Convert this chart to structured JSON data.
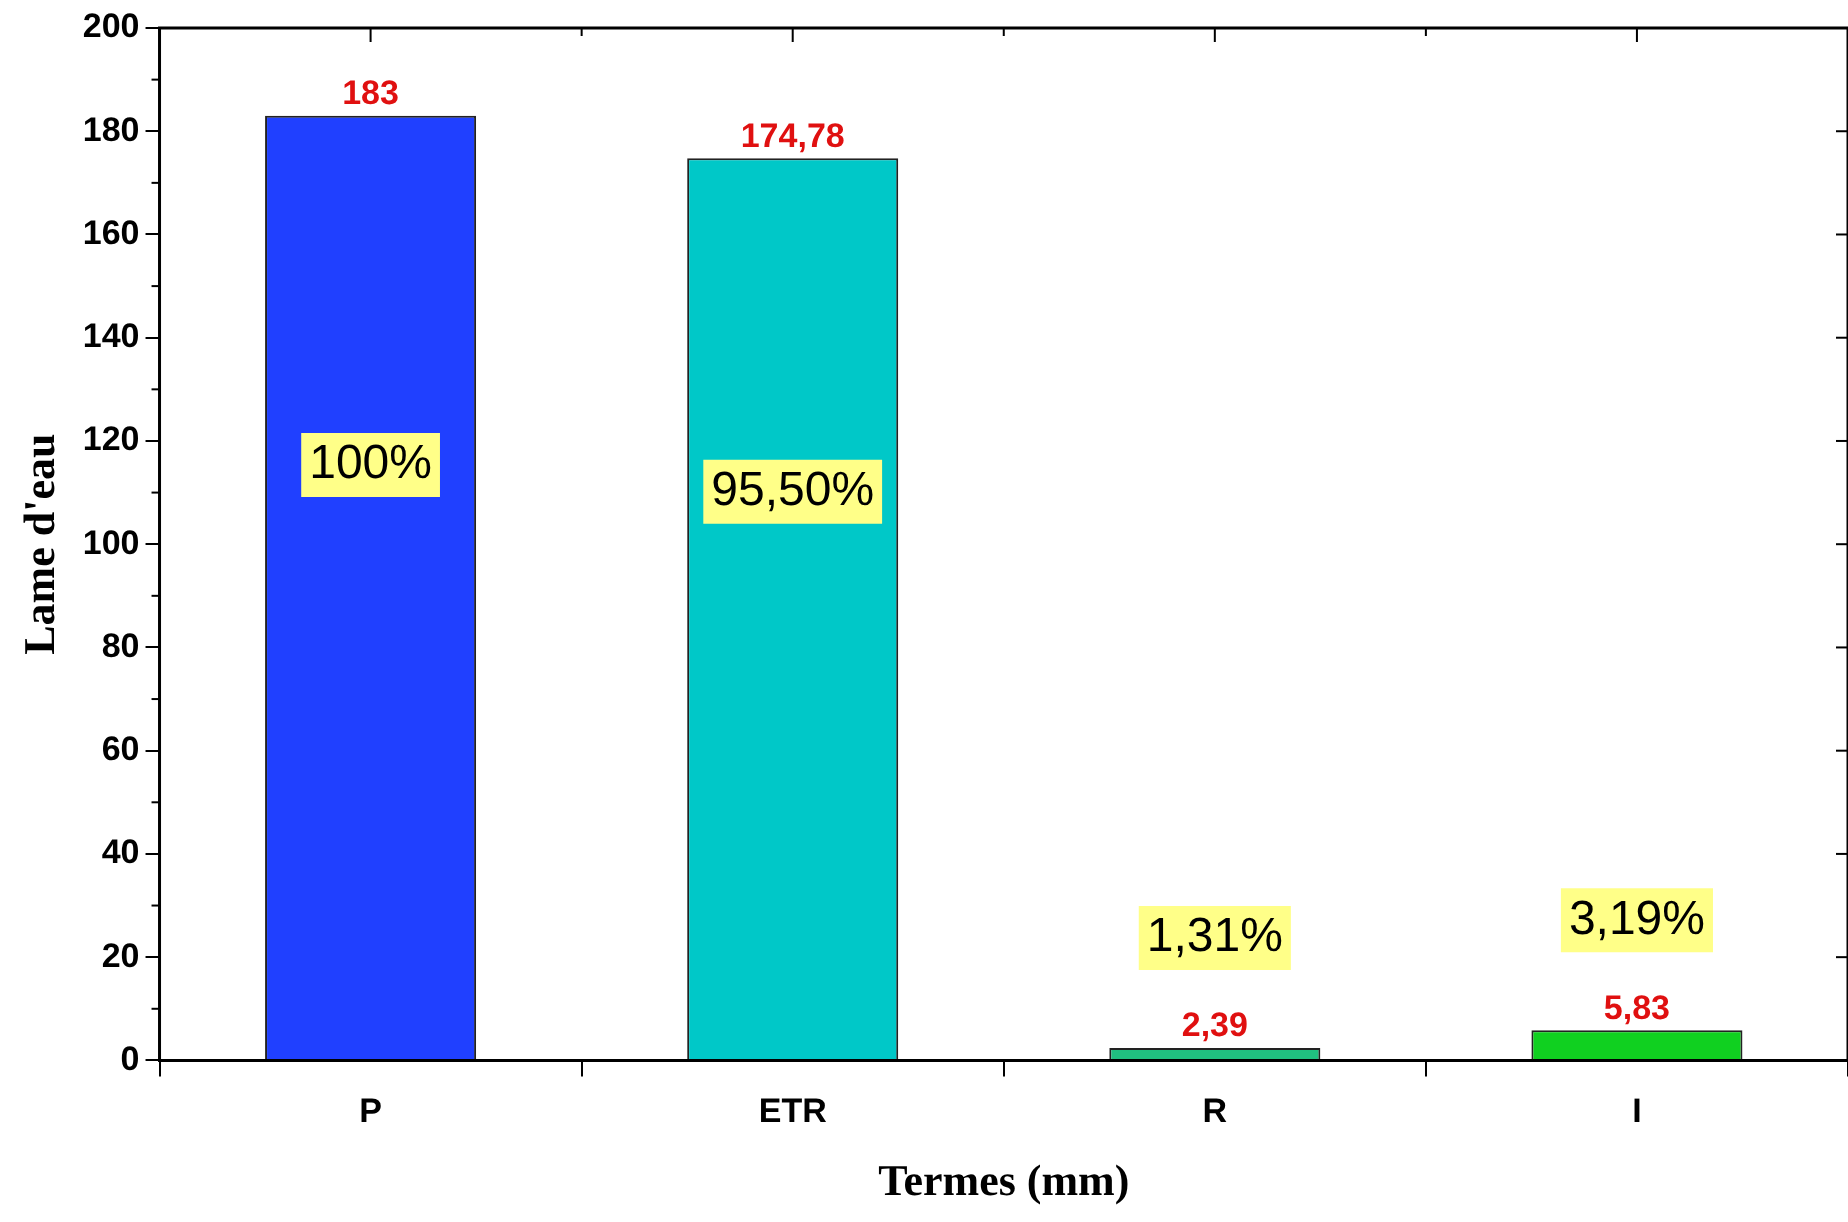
{
  "chart_data": {
    "type": "bar",
    "xlabel": "Termes (mm)",
    "ylabel": "Lame d'eau",
    "categories": [
      "P",
      "ETR",
      "R",
      "I"
    ],
    "values": [
      183,
      174.78,
      2.39,
      5.83
    ],
    "colors": [
      "#2040ff",
      "#00c8c8",
      "#20c080",
      "#10d020"
    ],
    "value_labels": [
      "183",
      "174,78",
      "2,39",
      "5,83"
    ],
    "ylim": [
      0,
      200
    ],
    "yticks": [
      0,
      20,
      40,
      60,
      80,
      100,
      120,
      140,
      160,
      180,
      200
    ],
    "grid": false,
    "legend": false,
    "annotations": [
      "100%",
      "95,50%",
      "1,31%",
      "3,19%"
    ]
  }
}
